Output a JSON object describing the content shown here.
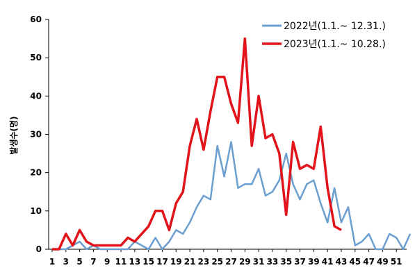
{
  "chart_data": {
    "type": "line",
    "ylabel": "발생수(명)",
    "ylim": [
      0,
      60
    ],
    "yticks": [
      0,
      10,
      20,
      30,
      40,
      50,
      60
    ],
    "xlim": [
      1,
      53
    ],
    "xticks": [
      1,
      3,
      5,
      7,
      9,
      11,
      13,
      15,
      17,
      19,
      21,
      23,
      25,
      27,
      29,
      31,
      33,
      35,
      37,
      39,
      41,
      43,
      45,
      47,
      49,
      51
    ],
    "legend_position": "top-right",
    "series": [
      {
        "name": "2022년(1.1.~ 12.31.)",
        "color": "#6a9fd0",
        "x": [
          1,
          2,
          3,
          4,
          5,
          6,
          7,
          8,
          9,
          10,
          11,
          12,
          13,
          14,
          15,
          16,
          17,
          18,
          19,
          20,
          21,
          22,
          23,
          24,
          25,
          26,
          27,
          28,
          29,
          30,
          31,
          32,
          33,
          34,
          35,
          36,
          37,
          38,
          39,
          40,
          41,
          42,
          43,
          44,
          45,
          46,
          47,
          48,
          49,
          50,
          51,
          52,
          53
        ],
        "values": [
          0,
          0,
          0,
          1,
          2,
          0,
          1,
          0,
          0,
          0,
          0,
          0,
          2,
          1,
          0,
          3,
          0,
          2,
          5,
          4,
          7,
          11,
          14,
          13,
          27,
          19,
          28,
          16,
          17,
          17,
          21,
          14,
          15,
          18,
          25,
          17,
          13,
          17,
          18,
          12,
          7,
          16,
          7,
          11,
          1,
          2,
          4,
          0,
          0,
          4,
          3,
          0,
          4
        ]
      },
      {
        "name": "2023년(1.1.~ 10.28.)",
        "color": "#e0141a",
        "x": [
          1,
          2,
          3,
          4,
          5,
          6,
          7,
          8,
          9,
          10,
          11,
          12,
          13,
          14,
          15,
          16,
          17,
          18,
          19,
          20,
          21,
          22,
          23,
          24,
          25,
          26,
          27,
          28,
          29,
          30,
          31,
          32,
          33,
          34,
          35,
          36,
          37,
          38,
          39,
          40,
          41,
          42,
          43
        ],
        "values": [
          0,
          0,
          4,
          1,
          5,
          2,
          1,
          1,
          1,
          1,
          1,
          3,
          2,
          4,
          6,
          10,
          10,
          5,
          12,
          15,
          27,
          34,
          26,
          36,
          45,
          45,
          38,
          33,
          55,
          27,
          40,
          29,
          30,
          25,
          9,
          28,
          21,
          22,
          21,
          32,
          16,
          6,
          5
        ]
      }
    ]
  }
}
